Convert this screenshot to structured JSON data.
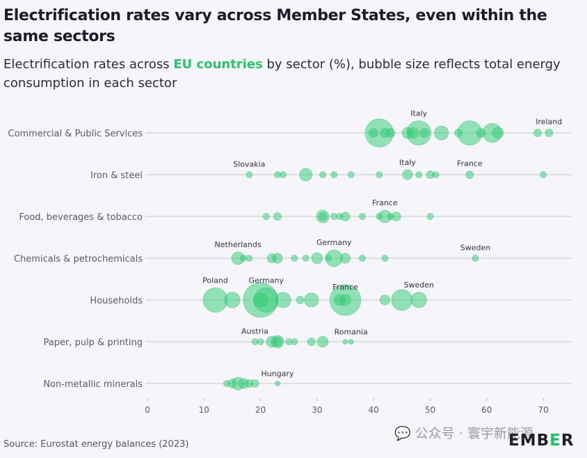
{
  "title": "Electrification rates vary across Member States, even within the same sectors",
  "subtitle": {
    "prefix": "Electrification rates across ",
    "highlight": "EU countries",
    "suffix": " by sector (%), bubble size reflects total energy consumption in each sector"
  },
  "colors": {
    "accent": "#2cc36b",
    "bubble_fill": "#2ecc71",
    "axis": "#c8c8d0"
  },
  "source": "Source: Eurostat energy balances (2023)",
  "watermark": "公众号 · 寰宇新能源",
  "logo": {
    "pre": "EMB",
    "mid": "E",
    "post": "R"
  },
  "chart_data": {
    "type": "scatter",
    "title": "Electrification rates across EU countries by sector (%)",
    "xlabel": "",
    "ylabel": "",
    "xlim": [
      0,
      75
    ],
    "xticks": [
      0,
      10,
      20,
      30,
      40,
      50,
      60,
      70
    ],
    "grid": false,
    "size_encoding": "total energy consumption in each sector (relative)",
    "sectors": [
      {
        "name": "Commercial & Public Services",
        "points": [
          [
            40,
            4
          ],
          [
            41,
            40
          ],
          [
            42,
            4
          ],
          [
            43,
            4
          ],
          [
            46,
            6
          ],
          [
            47,
            6
          ],
          [
            48,
            30
          ],
          [
            49,
            4
          ],
          [
            52,
            10
          ],
          [
            55,
            3
          ],
          [
            57,
            30
          ],
          [
            59,
            4
          ],
          [
            61,
            18
          ],
          [
            62,
            6
          ],
          [
            69,
            3
          ],
          [
            71,
            3
          ]
        ],
        "labels": [
          {
            "text": "Italy",
            "x": 48
          },
          {
            "text": "Ireland",
            "x": 71
          }
        ]
      },
      {
        "name": "Iron & steel",
        "points": [
          [
            18,
            2
          ],
          [
            23,
            2
          ],
          [
            24,
            2
          ],
          [
            28,
            8
          ],
          [
            31,
            2
          ],
          [
            33,
            2
          ],
          [
            36,
            2
          ],
          [
            41,
            2
          ],
          [
            46,
            5
          ],
          [
            48,
            2
          ],
          [
            50,
            3
          ],
          [
            51,
            2
          ],
          [
            57,
            3
          ],
          [
            70,
            2
          ]
        ],
        "labels": [
          {
            "text": "Slovakia",
            "x": 18
          },
          {
            "text": "Italy",
            "x": 46
          },
          {
            "text": "France",
            "x": 57
          }
        ]
      },
      {
        "name": "Food, beverages & tobacco",
        "points": [
          [
            21,
            2
          ],
          [
            23,
            3
          ],
          [
            31,
            8
          ],
          [
            31,
            3
          ],
          [
            33,
            2
          ],
          [
            34,
            2
          ],
          [
            35,
            4
          ],
          [
            38,
            2
          ],
          [
            41,
            2
          ],
          [
            42,
            8
          ],
          [
            43,
            2
          ],
          [
            44,
            4
          ],
          [
            50,
            2
          ]
        ],
        "labels": [
          {
            "text": "France",
            "x": 42
          }
        ]
      },
      {
        "name": "Chemicals & petrochemicals",
        "points": [
          [
            16,
            8
          ],
          [
            17,
            2
          ],
          [
            18,
            2
          ],
          [
            22,
            4
          ],
          [
            23,
            5
          ],
          [
            26,
            2
          ],
          [
            28,
            2
          ],
          [
            30,
            6
          ],
          [
            32,
            2
          ],
          [
            33,
            14
          ],
          [
            35,
            5
          ],
          [
            38,
            2
          ],
          [
            42,
            2
          ],
          [
            58,
            2
          ]
        ],
        "labels": [
          {
            "text": "Netherlands",
            "x": 16
          },
          {
            "text": "Germany",
            "x": 33
          },
          {
            "text": "Sweden",
            "x": 58
          }
        ]
      },
      {
        "name": "Households",
        "points": [
          [
            12,
            30
          ],
          [
            15,
            12
          ],
          [
            20,
            60
          ],
          [
            21,
            30
          ],
          [
            20,
            10
          ],
          [
            24,
            12
          ],
          [
            27,
            3
          ],
          [
            29,
            10
          ],
          [
            34,
            6
          ],
          [
            35,
            6
          ],
          [
            35,
            48
          ],
          [
            42,
            5
          ],
          [
            45,
            22
          ],
          [
            48,
            12
          ]
        ],
        "labels": [
          {
            "text": "Poland",
            "x": 12
          },
          {
            "text": "Germany",
            "x": 21
          },
          {
            "text": "France",
            "x": 35
          },
          {
            "text": "Sweden",
            "x": 48
          }
        ]
      },
      {
        "name": "Paper, pulp & printing",
        "points": [
          [
            19,
            2
          ],
          [
            20,
            2
          ],
          [
            22,
            6
          ],
          [
            23,
            8
          ],
          [
            23,
            4
          ],
          [
            25,
            2
          ],
          [
            26,
            2
          ],
          [
            29,
            3
          ],
          [
            31,
            6
          ],
          [
            35,
            1
          ],
          [
            36,
            1
          ]
        ],
        "labels": [
          {
            "text": "Austria",
            "x": 19
          },
          {
            "text": "Romania",
            "x": 36
          }
        ]
      },
      {
        "name": "Non-metallic minerals",
        "points": [
          [
            14,
            2
          ],
          [
            15,
            4
          ],
          [
            16,
            8
          ],
          [
            17,
            5
          ],
          [
            18,
            3
          ],
          [
            19,
            3
          ],
          [
            23,
            1
          ]
        ],
        "labels": [
          {
            "text": "Hungary",
            "x": 23
          }
        ]
      }
    ]
  }
}
